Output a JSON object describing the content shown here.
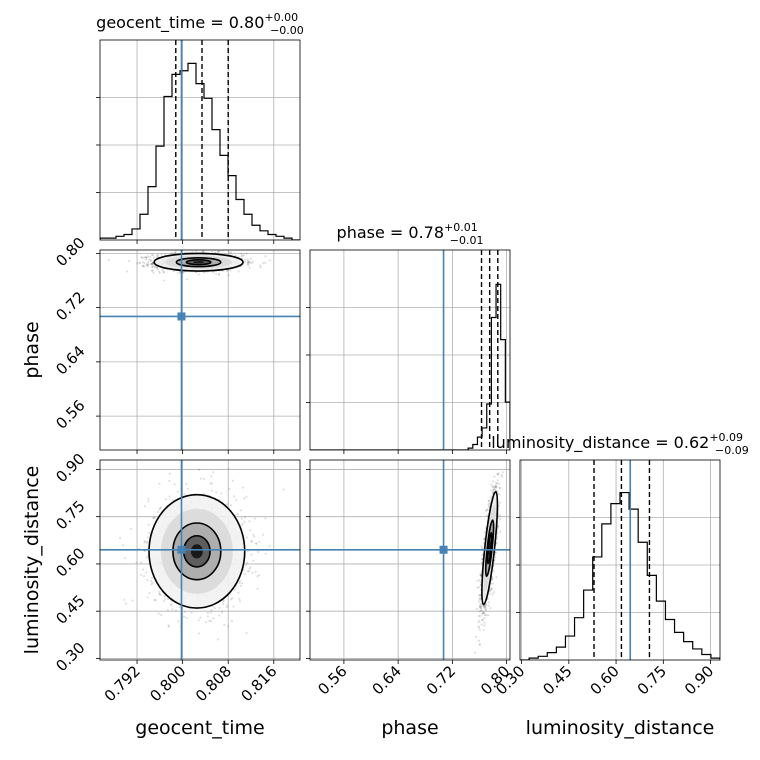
{
  "chart_data": {
    "type": "corner",
    "truth_color": "#4682b4",
    "params": [
      {
        "name": "geocent_time",
        "ylabel": "",
        "title_text": "geocent_time = 0.80",
        "title_sup": "+0.00",
        "title_sub": "−0.00",
        "range": [
          0.7855,
          0.8206
        ],
        "ticks": [
          0.792,
          0.8,
          0.808,
          0.816
        ],
        "tick_labels": [
          "0.792",
          "0.800",
          "0.808",
          "0.816"
        ],
        "truth": 0.7998,
        "quantiles": [
          0.7988,
          0.8034,
          0.808
        ],
        "hist_max": 100,
        "hist": [
          1,
          1,
          2,
          3,
          6,
          14,
          29,
          51,
          78,
          90,
          92,
          96,
          85,
          77,
          60,
          46,
          35,
          22,
          14,
          8,
          5,
          3,
          2,
          1,
          0
        ]
      },
      {
        "name": "phase",
        "ylabel": "phase",
        "title_text": "phase = 0.78",
        "title_sup": "+0.01",
        "title_sub": "−0.01",
        "range": [
          0.51,
          0.805
        ],
        "ticks": [
          0.56,
          0.64,
          0.72,
          0.8
        ],
        "tick_labels": [
          "0.56",
          "0.64",
          "0.72",
          "0.80"
        ],
        "truth": 0.707,
        "quantiles": [
          0.763,
          0.775,
          0.787
        ],
        "hist_max": 100,
        "hist": [
          0,
          0,
          0,
          0,
          0,
          0,
          0,
          0,
          0,
          0,
          0,
          0,
          0,
          0,
          0,
          0,
          0,
          0,
          0,
          0,
          0,
          0,
          0,
          0,
          0,
          0,
          0,
          0,
          0,
          0,
          0,
          0,
          0,
          0,
          1,
          3,
          7,
          12,
          25,
          72,
          90,
          60,
          26
        ]
      },
      {
        "name": "luminosity_distance",
        "ylabel": "luminosity_distance",
        "title_text": "luminosity_distance = 0.62",
        "title_sup": "+0.09",
        "title_sub": "−0.09",
        "range": [
          0.295,
          0.93
        ],
        "ticks": [
          0.3,
          0.45,
          0.6,
          0.75,
          0.9
        ],
        "tick_labels": [
          "0.30",
          "0.45",
          "0.60",
          "0.75",
          "0.90"
        ],
        "truth": 0.645,
        "quantiles": [
          0.53,
          0.617,
          0.706
        ],
        "hist_max": 100,
        "hist": [
          0,
          1,
          2,
          4,
          7,
          13,
          23,
          38,
          56,
          74,
          85,
          91,
          82,
          64,
          46,
          32,
          22,
          15,
          10,
          6,
          3,
          1
        ]
      }
    ],
    "pairs": [
      {
        "x": "geocent_time",
        "y": "phase",
        "centre": [
          0.8028,
          0.787
        ],
        "sigma": [
          0.0039,
          0.0065
        ],
        "corr": 0.0
      },
      {
        "x": "geocent_time",
        "y": "luminosity_distance",
        "centre": [
          0.8025,
          0.64
        ],
        "sigma": [
          0.0042,
          0.09
        ],
        "corr": 0.0
      },
      {
        "x": "phase",
        "y": "luminosity_distance",
        "centre": [
          0.775,
          0.65
        ],
        "sigma": [
          0.006,
          0.09
        ],
        "corr": 0.75
      }
    ],
    "grid": true
  }
}
